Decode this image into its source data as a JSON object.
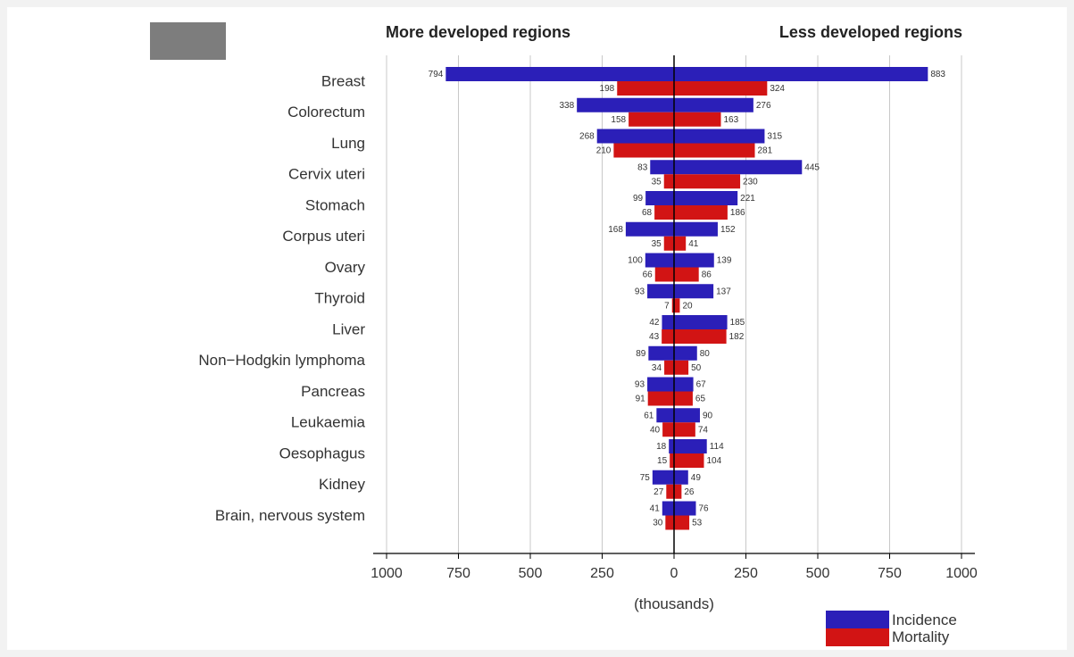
{
  "chart_data": {
    "type": "bar",
    "orientation": "horizontal-diverging",
    "categories": [
      "Breast",
      "Colorectum",
      "Lung",
      "Cervix uteri",
      "Stomach",
      "Corpus uteri",
      "Ovary",
      "Thyroid",
      "Liver",
      "Non−Hodgkin lymphoma",
      "Pancreas",
      "Leukaemia",
      "Oesophagus",
      "Kidney",
      "Brain, nervous system"
    ],
    "left_title": "More developed regions",
    "right_title": "Less developed regions",
    "xlabel": "(thousands)",
    "xlim": [
      -1000,
      1000
    ],
    "tick_values": [
      -1000,
      -750,
      -500,
      -250,
      0,
      250,
      500,
      750,
      1000
    ],
    "tick_labels": [
      "1000",
      "750",
      "500",
      "250",
      "0",
      "250",
      "500",
      "750",
      "1000"
    ],
    "grid": true,
    "legend_position": "bottom-right",
    "series": [
      {
        "name": "Incidence",
        "color": "#2b1fb8",
        "more_developed": [
          794,
          338,
          268,
          83,
          99,
          168,
          100,
          93,
          42,
          89,
          93,
          61,
          18,
          75,
          41
        ],
        "less_developed": [
          883,
          276,
          315,
          445,
          221,
          152,
          139,
          137,
          185,
          80,
          67,
          90,
          114,
          49,
          76
        ]
      },
      {
        "name": "Mortality",
        "color": "#d21414",
        "more_developed": [
          198,
          158,
          210,
          35,
          68,
          35,
          66,
          7,
          43,
          34,
          91,
          40,
          15,
          27,
          30
        ],
        "less_developed": [
          324,
          163,
          281,
          230,
          186,
          41,
          86,
          20,
          182,
          50,
          65,
          74,
          104,
          26,
          53
        ]
      }
    ]
  }
}
